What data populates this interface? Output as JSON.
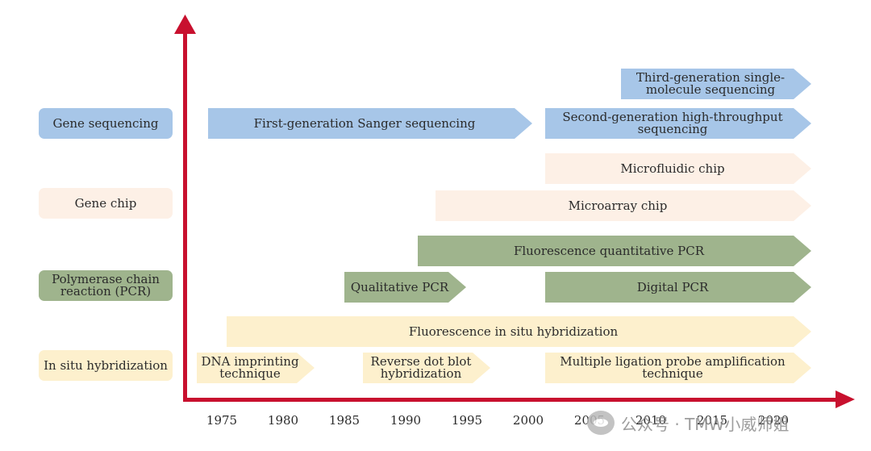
{
  "categories": [
    {
      "key": "seq",
      "label": "Gene sequencing",
      "color": "#a7c6e8"
    },
    {
      "key": "chip",
      "label": "Gene chip",
      "color": "#fdf0e6"
    },
    {
      "key": "pcr",
      "label": "Polymerase chain reaction (PCR)",
      "color": "#9fb48d"
    },
    {
      "key": "ish",
      "label": "In situ hybridization",
      "color": "#fdf0cd"
    }
  ],
  "technologies": [
    {
      "label": "Third-generation single-molecule sequencing",
      "category": "seq",
      "start_year": 2006,
      "end_year": 2020
    },
    {
      "label": "First-generation Sanger sequencing",
      "category": "seq",
      "start_year": 1974,
      "end_year": 2000
    },
    {
      "label": "Second-generation high-throughput sequencing",
      "category": "seq",
      "start_year": 2000,
      "end_year": 2020
    },
    {
      "label": "Microfluidic chip",
      "category": "chip",
      "start_year": 2000,
      "end_year": 2020
    },
    {
      "label": "Microarray chip",
      "category": "chip",
      "start_year": 1991,
      "end_year": 2020
    },
    {
      "label": "Fluorescence quantitative PCR",
      "category": "pcr",
      "start_year": 1991,
      "end_year": 2020
    },
    {
      "label": "Qualitative PCR",
      "category": "pcr",
      "start_year": 1985,
      "end_year": 1995
    },
    {
      "label": "Digital PCR",
      "category": "pcr",
      "start_year": 2000,
      "end_year": 2020
    },
    {
      "label": "Fluorescence in situ hybridization",
      "category": "ish",
      "start_year": 1976,
      "end_year": 2020
    },
    {
      "label": "DNA imprinting technique",
      "category": "ish",
      "start_year": 1975,
      "end_year": 1983
    },
    {
      "label": "Reverse dot blot hybridization",
      "category": "ish",
      "start_year": 1987,
      "end_year": 1997
    },
    {
      "label": "Multiple ligation probe amplification technique",
      "category": "ish",
      "start_year": 2000,
      "end_year": 2020
    }
  ],
  "axis": {
    "years": [
      "1975",
      "1980",
      "1985",
      "1990",
      "1995",
      "2000",
      "2005",
      "2010",
      "2015",
      "2020"
    ]
  },
  "watermark": {
    "label": "公众号 · TMW小威师姐"
  }
}
